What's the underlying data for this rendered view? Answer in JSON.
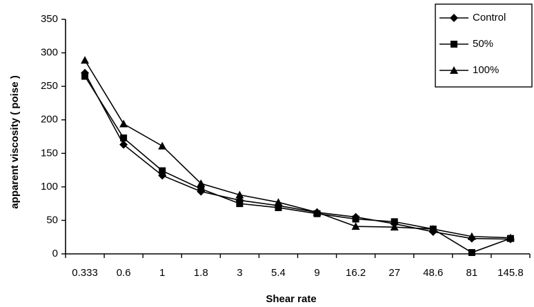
{
  "chart_data": {
    "type": "line",
    "title": "",
    "xlabel": "Shear rate",
    "ylabel": "apparent viscosity ( poise )",
    "categories": [
      "0.333",
      "0.6",
      "1",
      "1.8",
      "3",
      "5.4",
      "9",
      "16.2",
      "27",
      "48.6",
      "81",
      "145.8"
    ],
    "yticks": [
      "0",
      "50",
      "100",
      "150",
      "200",
      "250",
      "300",
      "350"
    ],
    "ylim": [
      0,
      350
    ],
    "grid": false,
    "legend_position": "top-right",
    "series": [
      {
        "name": "Control",
        "marker": "diamond",
        "values": [
          270,
          163,
          117,
          93,
          80,
          72,
          62,
          55,
          45,
          33,
          23,
          22
        ]
      },
      {
        "name": "50%",
        "marker": "square",
        "values": [
          265,
          173,
          124,
          97,
          75,
          69,
          60,
          52,
          48,
          37,
          2,
          23
        ]
      },
      {
        "name": "100%",
        "marker": "triangle",
        "values": [
          289,
          194,
          161,
          105,
          88,
          77,
          62,
          41,
          40,
          37,
          26,
          24
        ]
      }
    ]
  }
}
